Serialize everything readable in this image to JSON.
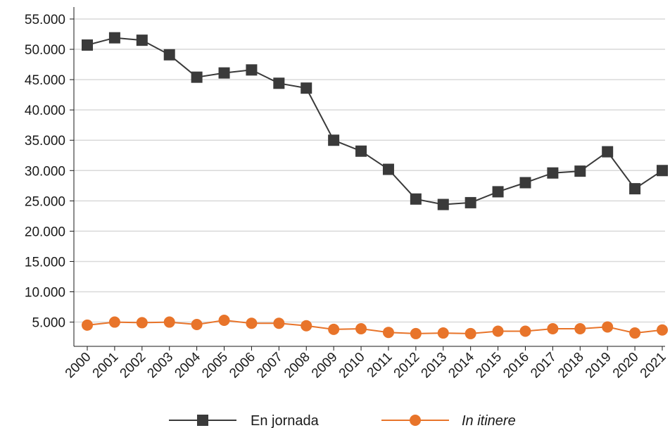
{
  "chart_data": {
    "type": "line",
    "title": "",
    "xlabel": "",
    "ylabel": "",
    "categories": [
      "2000",
      "2001",
      "2002",
      "2003",
      "2004",
      "2005",
      "2006",
      "2007",
      "2008",
      "2009",
      "2010",
      "2011",
      "2012",
      "2013",
      "2014",
      "2015",
      "2016",
      "2017",
      "2018",
      "2019",
      "2020",
      "2021"
    ],
    "ylim": [
      1000,
      55000
    ],
    "yticks": [
      5000,
      10000,
      15000,
      20000,
      25000,
      30000,
      35000,
      40000,
      45000,
      50000,
      55000
    ],
    "ytick_labels": [
      "5.000",
      "10.000",
      "15.000",
      "20.000",
      "25.000",
      "30.000",
      "35.000",
      "40.000",
      "45.000",
      "50.000",
      "55.000"
    ],
    "grid": true,
    "legend_position": "bottom",
    "series": [
      {
        "name": "En jornada",
        "color": "#3a3a3a",
        "marker": "square",
        "values": [
          50700,
          51900,
          51500,
          49100,
          45400,
          46100,
          46600,
          44400,
          43600,
          35000,
          33200,
          30200,
          25300,
          24400,
          24700,
          26500,
          28000,
          29600,
          29900,
          33100,
          27000,
          30000
        ]
      },
      {
        "name": "In itinere",
        "color": "#e8742a",
        "marker": "circle",
        "italic_label": true,
        "values": [
          4500,
          5000,
          4900,
          5000,
          4600,
          5300,
          4800,
          4800,
          4400,
          3800,
          3900,
          3300,
          3100,
          3200,
          3100,
          3500,
          3500,
          3900,
          3900,
          4200,
          3200,
          3700
        ]
      }
    ]
  }
}
